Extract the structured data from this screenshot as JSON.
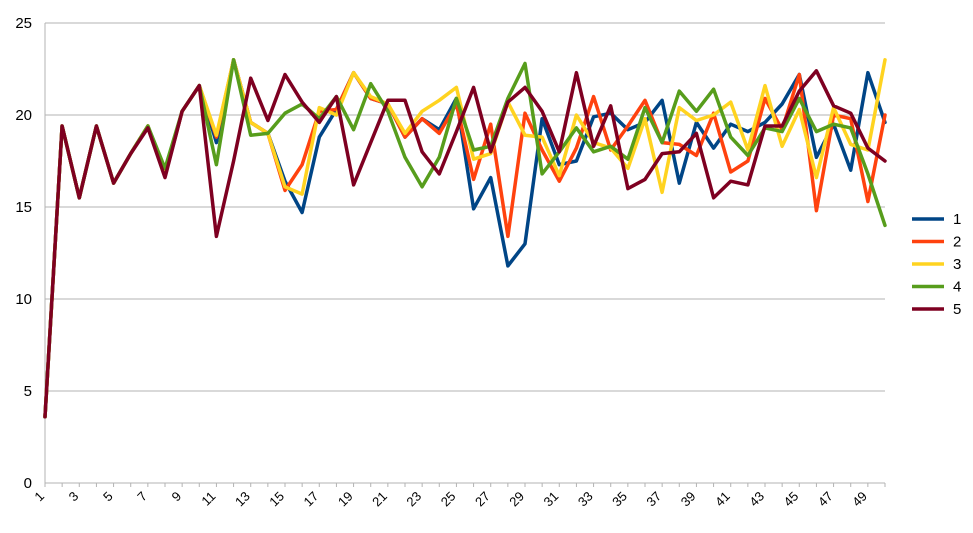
{
  "chart_data": {
    "type": "line",
    "x": [
      1,
      2,
      3,
      4,
      5,
      6,
      7,
      8,
      9,
      10,
      11,
      12,
      13,
      14,
      15,
      16,
      17,
      18,
      19,
      20,
      21,
      22,
      23,
      24,
      25,
      26,
      27,
      28,
      29,
      30,
      31,
      32,
      33,
      34,
      35,
      36,
      37,
      38,
      39,
      40,
      41,
      42,
      43,
      44,
      45,
      46,
      47,
      48,
      49,
      50
    ],
    "x_tick_labels": [
      "1",
      "3",
      "5",
      "7",
      "9",
      "11",
      "13",
      "15",
      "17",
      "19",
      "21",
      "23",
      "25",
      "27",
      "29",
      "31",
      "33",
      "35",
      "37",
      "39",
      "41",
      "43",
      "45",
      "47",
      "49"
    ],
    "ylim": [
      0,
      25
    ],
    "y_ticks": [
      0,
      5,
      10,
      15,
      20,
      25
    ],
    "grid": "horizontal",
    "legend_position": "right",
    "colors": [
      "#004586",
      "#ff420e",
      "#ffd320",
      "#579d1c",
      "#7e0021"
    ],
    "series": [
      {
        "name": "1",
        "values": [
          3.6,
          19.4,
          15.5,
          19.4,
          16.3,
          17.9,
          19.4,
          16.7,
          20.2,
          21.6,
          18.5,
          23.0,
          19.6,
          19.0,
          16.4,
          14.7,
          18.8,
          20.3,
          22.3,
          20.9,
          20.6,
          18.8,
          19.8,
          19.2,
          20.9,
          14.9,
          16.6,
          11.8,
          13.0,
          19.8,
          17.3,
          17.5,
          19.9,
          20.1,
          19.2,
          19.6,
          20.8,
          16.3,
          19.6,
          18.2,
          19.5,
          19.1,
          19.6,
          20.6,
          22.2,
          17.7,
          19.5,
          17.0,
          22.3,
          19.6
        ]
      },
      {
        "name": "2",
        "values": [
          3.6,
          19.4,
          15.5,
          19.4,
          16.3,
          17.9,
          19.4,
          16.7,
          20.2,
          21.6,
          18.8,
          23.0,
          19.6,
          19.0,
          15.9,
          17.3,
          20.2,
          20.3,
          22.3,
          20.9,
          20.6,
          18.8,
          19.8,
          19.0,
          20.6,
          16.5,
          19.5,
          13.4,
          20.1,
          18.1,
          16.4,
          18.2,
          21.0,
          18.1,
          19.4,
          20.8,
          18.5,
          18.4,
          17.8,
          20.1,
          16.9,
          17.5,
          20.9,
          19.2,
          22.2,
          14.8,
          20.0,
          19.8,
          15.3,
          20.0
        ]
      },
      {
        "name": "3",
        "values": [
          3.6,
          19.4,
          15.5,
          19.4,
          16.3,
          17.9,
          19.4,
          16.8,
          20.2,
          21.6,
          18.9,
          23.0,
          19.6,
          19.0,
          16.1,
          15.7,
          20.4,
          20.0,
          22.3,
          21.0,
          20.6,
          19.0,
          20.2,
          20.8,
          21.5,
          17.6,
          17.9,
          20.7,
          18.9,
          18.8,
          16.7,
          20.0,
          18.5,
          18.2,
          17.1,
          19.8,
          15.8,
          20.4,
          19.7,
          20.0,
          20.7,
          18.1,
          21.6,
          18.3,
          20.3,
          16.6,
          20.4,
          18.4,
          18.1,
          23.0
        ]
      },
      {
        "name": "4",
        "values": [
          3.6,
          19.4,
          15.5,
          19.4,
          16.3,
          17.9,
          19.4,
          17.1,
          20.2,
          21.6,
          17.3,
          23.0,
          18.9,
          19.0,
          20.1,
          20.6,
          19.8,
          21.0,
          19.2,
          21.7,
          20.2,
          17.7,
          16.1,
          17.7,
          20.9,
          18.1,
          18.3,
          20.9,
          22.8,
          16.8,
          18.0,
          19.3,
          18.0,
          18.3,
          17.6,
          20.4,
          18.5,
          21.3,
          20.2,
          21.4,
          18.8,
          17.8,
          19.3,
          19.1,
          20.9,
          19.1,
          19.5,
          19.3,
          16.8,
          14.0
        ]
      },
      {
        "name": "5",
        "values": [
          3.6,
          19.4,
          15.5,
          19.4,
          16.3,
          17.9,
          19.3,
          16.6,
          20.2,
          21.6,
          13.4,
          17.5,
          22.0,
          19.7,
          22.2,
          20.7,
          19.6,
          21.0,
          16.2,
          18.5,
          20.8,
          20.8,
          18.0,
          16.8,
          19.1,
          21.5,
          18.0,
          20.7,
          21.5,
          20.2,
          18.0,
          22.3,
          18.3,
          20.5,
          16.0,
          16.5,
          17.9,
          18.0,
          19.0,
          15.5,
          16.4,
          16.2,
          19.4,
          19.4,
          21.3,
          22.4,
          20.5,
          20.1,
          18.2,
          17.5
        ]
      }
    ]
  }
}
